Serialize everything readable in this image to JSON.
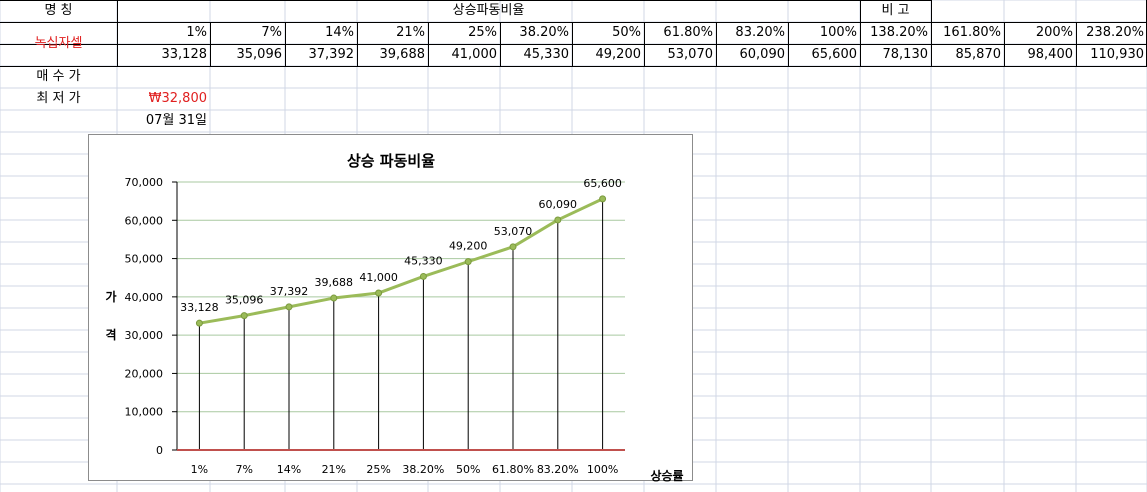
{
  "header": {
    "name_label": "명      칭",
    "ratio_title": "상승파동비율",
    "note_label": "비      고"
  },
  "stock": {
    "name": "녹십자셀"
  },
  "ratios": [
    "1%",
    "7%",
    "14%",
    "21%",
    "25%",
    "38.20%",
    "50%",
    "61.80%",
    "83.20%",
    "100%",
    "138.20%",
    "161.80%",
    "200%",
    "238.20%"
  ],
  "prices": [
    "33,128",
    "35,096",
    "37,392",
    "39,688",
    "41,000",
    "45,330",
    "49,200",
    "53,070",
    "60,090",
    "65,600",
    "78,130",
    "85,870",
    "98,400",
    "110,930"
  ],
  "rows": {
    "buy_label": "매 수 가",
    "low_label": "최 저 가",
    "low_value": "₩32,800",
    "date_value": "07월 31일"
  },
  "colors": {
    "line": "#9bbb59",
    "baseline": "#c0504d",
    "gridline": "#a9c9a0",
    "red_text": "#e02020"
  },
  "chart_data": {
    "type": "line",
    "title": "상승 파동비율",
    "xlabel": "상승률",
    "ylabel": "가격",
    "categories": [
      "1%",
      "7%",
      "14%",
      "21%",
      "25%",
      "38.20%",
      "50%",
      "61.80%",
      "83.20%",
      "100%"
    ],
    "series": [
      {
        "values": [
          33128,
          35096,
          37392,
          39688,
          41000,
          45330,
          49200,
          53070,
          60090,
          65600
        ]
      },
      {
        "values": [
          0,
          0,
          0,
          0,
          0,
          0,
          0,
          0,
          0,
          0
        ]
      }
    ],
    "ylim": [
      0,
      70000
    ],
    "yticks": [
      "0",
      "10,000",
      "20,000",
      "30,000",
      "40,000",
      "50,000",
      "60,000",
      "70,000"
    ],
    "data_labels": [
      "33,128",
      "35,096",
      "37,392",
      "39,688",
      "41,000",
      "45,330",
      "49,200",
      "53,070",
      "60,090",
      "65,600"
    ],
    "grid": true,
    "drop_lines": true,
    "legend": "none"
  }
}
